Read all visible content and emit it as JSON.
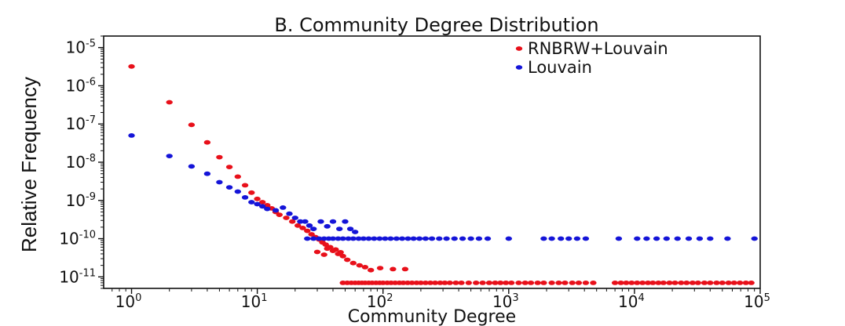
{
  "chart_data": {
    "type": "scatter",
    "title": "B. Community Degree Distribution",
    "xlabel": "Community Degree",
    "ylabel": "Relative Frequency",
    "x_scale": "log",
    "y_scale": "log",
    "xlim": [
      0.6,
      100000
    ],
    "ylim": [
      5e-12,
      2e-05
    ],
    "x_tick_labels": [
      {
        "value": 1,
        "base": "10",
        "exp": "0"
      },
      {
        "value": 10,
        "base": "10",
        "exp": "1"
      },
      {
        "value": 100,
        "base": "10",
        "exp": "2"
      },
      {
        "value": 1000,
        "base": "10",
        "exp": "3"
      },
      {
        "value": 10000,
        "base": "10",
        "exp": "4"
      },
      {
        "value": 100000,
        "base": "10",
        "exp": "5"
      }
    ],
    "y_tick_labels": [
      {
        "value": 1e-05,
        "base": "10",
        "exp": "-5"
      },
      {
        "value": 1e-06,
        "base": "10",
        "exp": "-6"
      },
      {
        "value": 1e-07,
        "base": "10",
        "exp": "-7"
      },
      {
        "value": 1e-08,
        "base": "10",
        "exp": "-8"
      },
      {
        "value": 1e-09,
        "base": "10",
        "exp": "-9"
      },
      {
        "value": 1e-10,
        "base": "10",
        "exp": "-10"
      },
      {
        "value": 1e-11,
        "base": "10",
        "exp": "-11"
      }
    ],
    "grid": false,
    "legend_position": "top-right",
    "series": [
      {
        "name": "RNBRW+Louvain",
        "color": "#e8101a",
        "points": [
          [
            1,
            3.2e-06
          ],
          [
            2,
            3.7e-07
          ],
          [
            3,
            9.5e-08
          ],
          [
            4,
            3.3e-08
          ],
          [
            5,
            1.35e-08
          ],
          [
            6,
            7.5e-09
          ],
          [
            7,
            4.2e-09
          ],
          [
            8,
            2.5e-09
          ],
          [
            9,
            1.6e-09
          ],
          [
            10,
            1.1e-09
          ],
          [
            11,
            9e-10
          ],
          [
            12,
            7.5e-10
          ],
          [
            13,
            6.2e-10
          ],
          [
            14,
            5e-10
          ],
          [
            15,
            4.2e-10
          ],
          [
            17,
            3.5e-10
          ],
          [
            19,
            2.8e-10
          ],
          [
            21,
            2.2e-10
          ],
          [
            23,
            1.9e-10
          ],
          [
            25,
            1.6e-10
          ],
          [
            27,
            1.3e-10
          ],
          [
            29,
            1.1e-10
          ],
          [
            31,
            9.5e-11
          ],
          [
            33,
            8e-11
          ],
          [
            35,
            7e-11
          ],
          [
            38,
            6e-11
          ],
          [
            40,
            4.8e-11
          ],
          [
            44,
            4e-11
          ],
          [
            48,
            3.5e-11
          ],
          [
            30,
            4.5e-11
          ],
          [
            34,
            3.8e-11
          ],
          [
            36,
            5.5e-11
          ],
          [
            42,
            5.2e-11
          ],
          [
            46,
            4.4e-11
          ],
          [
            52,
            2.8e-11
          ],
          [
            58,
            2.3e-11
          ],
          [
            65,
            2e-11
          ],
          [
            72,
            1.8e-11
          ],
          [
            80,
            1.5e-11
          ],
          [
            95,
            1.7e-11
          ],
          [
            120,
            1.6e-11
          ],
          [
            150,
            1.6e-11
          ],
          [
            48,
            7e-12
          ],
          [
            52,
            7e-12
          ],
          [
            56,
            7e-12
          ],
          [
            60,
            7e-12
          ],
          [
            64,
            7e-12
          ],
          [
            68,
            7e-12
          ],
          [
            72,
            7e-12
          ],
          [
            77,
            7e-12
          ],
          [
            82,
            7e-12
          ],
          [
            88,
            7e-12
          ],
          [
            94,
            7e-12
          ],
          [
            100,
            7e-12
          ],
          [
            108,
            7e-12
          ],
          [
            116,
            7e-12
          ],
          [
            125,
            7e-12
          ],
          [
            135,
            7e-12
          ],
          [
            145,
            7e-12
          ],
          [
            157,
            7e-12
          ],
          [
            170,
            7e-12
          ],
          [
            185,
            7e-12
          ],
          [
            200,
            7e-12
          ],
          [
            218,
            7e-12
          ],
          [
            238,
            7e-12
          ],
          [
            260,
            7e-12
          ],
          [
            285,
            7e-12
          ],
          [
            310,
            7e-12
          ],
          [
            340,
            7e-12
          ],
          [
            380,
            7e-12
          ],
          [
            420,
            7e-12
          ],
          [
            480,
            7e-12
          ],
          [
            550,
            7e-12
          ],
          [
            620,
            7e-12
          ],
          [
            700,
            7e-12
          ],
          [
            780,
            7e-12
          ],
          [
            860,
            7e-12
          ],
          [
            950,
            7e-12
          ],
          [
            1050,
            7e-12
          ],
          [
            1200,
            7e-12
          ],
          [
            1350,
            7e-12
          ],
          [
            1500,
            7e-12
          ],
          [
            1700,
            7e-12
          ],
          [
            1900,
            7e-12
          ],
          [
            2200,
            7e-12
          ],
          [
            2500,
            7e-12
          ],
          [
            2800,
            7e-12
          ],
          [
            3200,
            7e-12
          ],
          [
            3600,
            7e-12
          ],
          [
            4100,
            7e-12
          ],
          [
            4700,
            7e-12
          ],
          [
            7000,
            7e-12
          ],
          [
            7800,
            7e-12
          ],
          [
            8600,
            7e-12
          ],
          [
            9500,
            7e-12
          ],
          [
            10500,
            7e-12
          ],
          [
            11600,
            7e-12
          ],
          [
            12800,
            7e-12
          ],
          [
            14000,
            7e-12
          ],
          [
            15500,
            7e-12
          ],
          [
            17000,
            7e-12
          ],
          [
            19000,
            7e-12
          ],
          [
            21000,
            7e-12
          ],
          [
            23500,
            7e-12
          ],
          [
            26000,
            7e-12
          ],
          [
            29000,
            7e-12
          ],
          [
            32000,
            7e-12
          ],
          [
            36000,
            7e-12
          ],
          [
            40000,
            7e-12
          ],
          [
            45000,
            7e-12
          ],
          [
            50000,
            7e-12
          ],
          [
            56000,
            7e-12
          ],
          [
            62000,
            7e-12
          ],
          [
            69000,
            7e-12
          ],
          [
            77000,
            7e-12
          ],
          [
            85000,
            7e-12
          ]
        ]
      },
      {
        "name": "Louvain",
        "color": "#1414d8",
        "points": [
          [
            1,
            5e-08
          ],
          [
            2,
            1.45e-08
          ],
          [
            3,
            7.8e-09
          ],
          [
            4,
            5e-09
          ],
          [
            5,
            3e-09
          ],
          [
            6,
            2.2e-09
          ],
          [
            7,
            1.7e-09
          ],
          [
            8,
            1.2e-09
          ],
          [
            9,
            9e-10
          ],
          [
            10,
            8e-10
          ],
          [
            11,
            7e-10
          ],
          [
            12,
            6e-10
          ],
          [
            14,
            5.5e-10
          ],
          [
            16,
            6.5e-10
          ],
          [
            18,
            4.5e-10
          ],
          [
            20,
            3.5e-10
          ],
          [
            22,
            2.8e-10
          ],
          [
            24,
            2.8e-10
          ],
          [
            26,
            2.2e-10
          ],
          [
            28,
            1.8e-10
          ],
          [
            32,
            2.8e-10
          ],
          [
            36,
            2.1e-10
          ],
          [
            40,
            2.8e-10
          ],
          [
            45,
            1.8e-10
          ],
          [
            50,
            2.8e-10
          ],
          [
            55,
            1.8e-10
          ],
          [
            60,
            1.5e-10
          ],
          [
            25,
            1e-10
          ],
          [
            28,
            1e-10
          ],
          [
            31,
            1e-10
          ],
          [
            34,
            1e-10
          ],
          [
            37,
            1e-10
          ],
          [
            40,
            1e-10
          ],
          [
            44,
            1e-10
          ],
          [
            48,
            1e-10
          ],
          [
            53,
            1e-10
          ],
          [
            58,
            1e-10
          ],
          [
            64,
            1e-10
          ],
          [
            70,
            1e-10
          ],
          [
            77,
            1e-10
          ],
          [
            85,
            1e-10
          ],
          [
            94,
            1e-10
          ],
          [
            104,
            1e-10
          ],
          [
            115,
            1e-10
          ],
          [
            128,
            1e-10
          ],
          [
            142,
            1e-10
          ],
          [
            158,
            1e-10
          ],
          [
            175,
            1e-10
          ],
          [
            195,
            1e-10
          ],
          [
            218,
            1e-10
          ],
          [
            245,
            1e-10
          ],
          [
            280,
            1e-10
          ],
          [
            320,
            1e-10
          ],
          [
            370,
            1e-10
          ],
          [
            430,
            1e-10
          ],
          [
            500,
            1e-10
          ],
          [
            580,
            1e-10
          ],
          [
            680,
            1e-10
          ],
          [
            1000,
            1e-10
          ],
          [
            1900,
            1e-10
          ],
          [
            2200,
            1e-10
          ],
          [
            2600,
            1e-10
          ],
          [
            3000,
            1e-10
          ],
          [
            3500,
            1e-10
          ],
          [
            4100,
            1e-10
          ],
          [
            7500,
            1e-10
          ],
          [
            10500,
            1e-10
          ],
          [
            12500,
            1e-10
          ],
          [
            15000,
            1e-10
          ],
          [
            18000,
            1e-10
          ],
          [
            22000,
            1e-10
          ],
          [
            27000,
            1e-10
          ],
          [
            33000,
            1e-10
          ],
          [
            40000,
            1e-10
          ],
          [
            55000,
            1e-10
          ],
          [
            90000,
            1e-10
          ]
        ]
      }
    ]
  }
}
